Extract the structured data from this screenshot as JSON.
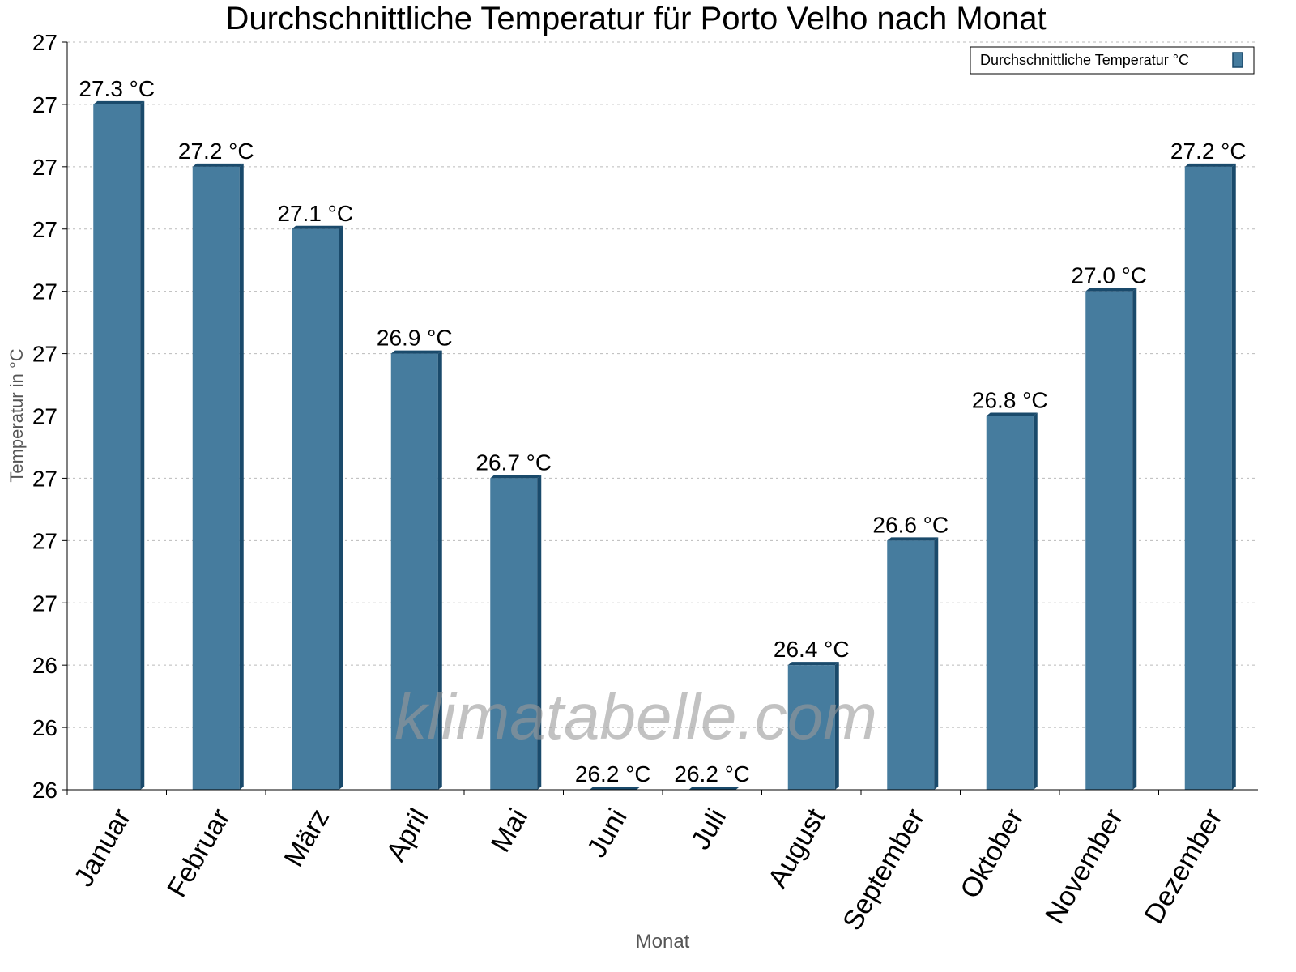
{
  "chart_data": {
    "type": "bar",
    "title": "Durchschnittliche Temperatur für Porto Velho nach Monat",
    "xlabel": "Monat",
    "ylabel": "Temperatur in °C",
    "categories": [
      "Januar",
      "Februar",
      "März",
      "April",
      "Mai",
      "Juni",
      "Juli",
      "August",
      "September",
      "Oktober",
      "November",
      "Dezember"
    ],
    "series": [
      {
        "name": "Durchschnittliche Temperatur °C",
        "values": [
          27.3,
          27.2,
          27.1,
          26.9,
          26.7,
          26.2,
          26.2,
          26.4,
          26.6,
          26.8,
          27.0,
          27.2
        ],
        "labels": [
          "27.3 °C",
          "27.2 °C",
          "27.1 °C",
          "26.9 °C",
          "26.7 °C",
          "26.2 °C",
          "26.2 °C",
          "26.4 °C",
          "26.6 °C",
          "26.8 °C",
          "27.0 °C",
          "27.2 °C"
        ]
      }
    ],
    "ylim": [
      26.2,
      27.4
    ],
    "yticks": [
      26.2,
      26.3,
      26.4,
      26.5,
      26.6,
      26.7,
      26.8,
      26.9,
      27.0,
      27.1,
      27.2,
      27.3,
      27.4
    ],
    "ytick_labels": [
      "26",
      "26",
      "26",
      "27",
      "27",
      "27",
      "27",
      "27",
      "27",
      "27",
      "27",
      "27",
      "27"
    ],
    "grid": true,
    "legend_position": "top-right",
    "colors": {
      "bar": "#467c9e",
      "bar_dark": "#1a4a6b"
    },
    "watermark": "klimatabelle.com"
  }
}
